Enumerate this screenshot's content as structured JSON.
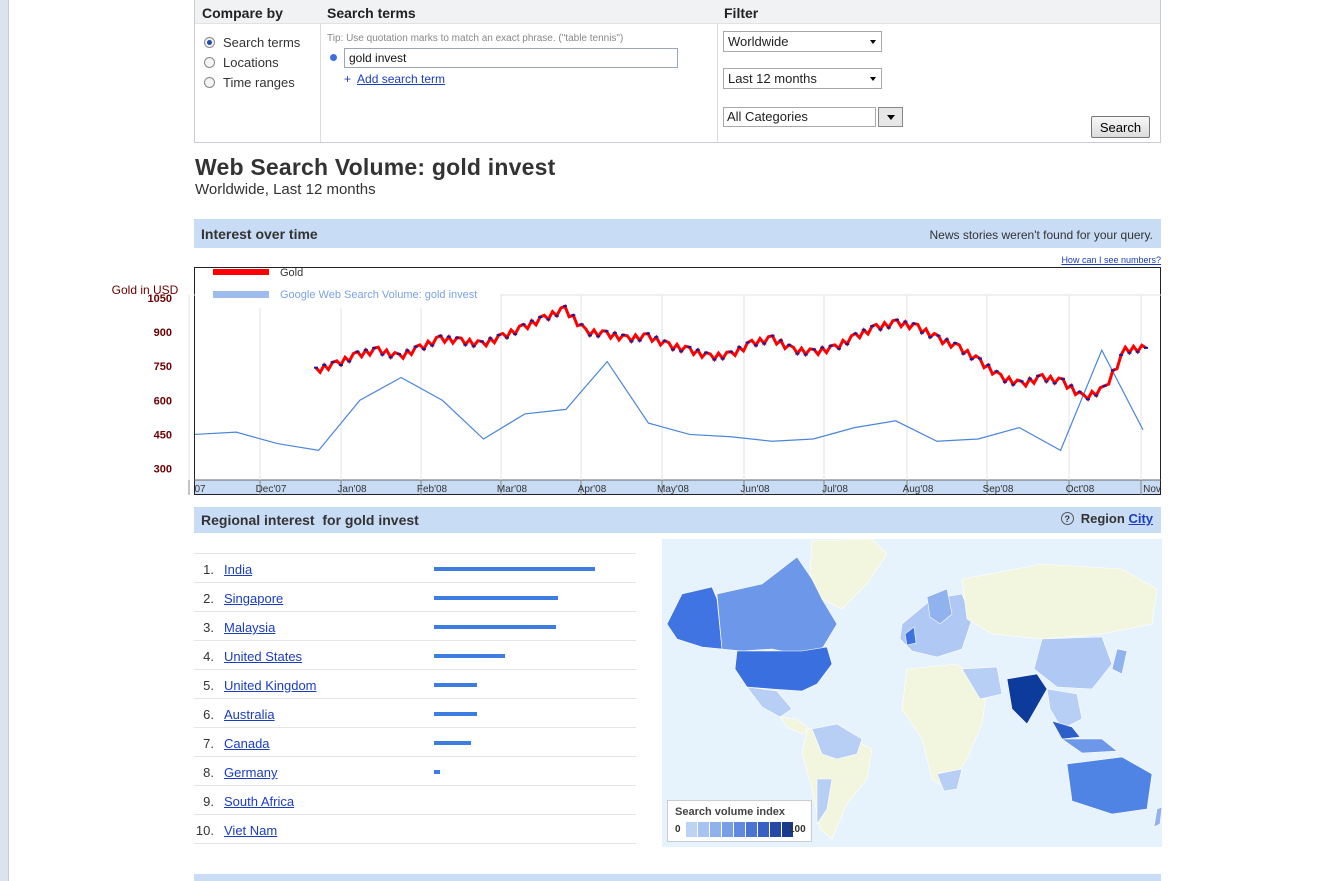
{
  "compare": {
    "header": "Compare by",
    "options": [
      {
        "label": "Search terms",
        "selected": true
      },
      {
        "label": "Locations",
        "selected": false
      },
      {
        "label": "Time ranges",
        "selected": false
      }
    ]
  },
  "terms": {
    "header": "Search terms",
    "tip": "Tip: Use quotation marks to match an exact phrase. (\"table tennis\")",
    "value": "gold invest",
    "add_label": "Add search term",
    "add_symbol": "+"
  },
  "filter": {
    "header": "Filter",
    "region": "Worldwide",
    "time": "Last 12 months",
    "category": "All Categories",
    "search_label": "Search"
  },
  "title": "Web Search Volume: gold invest",
  "subtitle": "Worldwide, Last 12 months",
  "interest": {
    "header": "Interest over time",
    "news": "News stories weren't found for your query.",
    "how": "How can I see numbers?"
  },
  "chart_data": {
    "type": "line",
    "ylabel": "Gold in USD",
    "y_ticks": [
      1050,
      900,
      750,
      600,
      450,
      300
    ],
    "x_ticks": [
      "07",
      "Dec'07",
      "Jan'08",
      "Feb'08",
      "Mar'08",
      "Apr'08",
      "May'08",
      "Jun'08",
      "Jul'08",
      "Aug'08",
      "Sep'08",
      "Oct'08",
      "Nov"
    ],
    "legend": [
      "Gold",
      "Google Web Search Volume: gold invest"
    ],
    "colors": {
      "gold": "#ff0000",
      "volume": "#4a86d8"
    },
    "series": [
      {
        "name": "Gold",
        "x": [
          "Jan'08",
          "Jan'08",
          "Jan'08",
          "Jan'08",
          "Jan'08",
          "Feb'08",
          "Feb'08",
          "Feb'08",
          "Feb'08",
          "Mar'08",
          "Mar'08",
          "Mar'08",
          "Mar'08",
          "Apr'08",
          "Apr'08",
          "Apr'08",
          "Apr'08",
          "May'08",
          "May'08",
          "May'08",
          "May'08",
          "Jun'08",
          "Jun'08",
          "Jun'08",
          "Jun'08",
          "Jul'08",
          "Jul'08",
          "Jul'08",
          "Jul'08",
          "Aug'08",
          "Aug'08",
          "Aug'08",
          "Aug'08",
          "Sep'08",
          "Sep'08",
          "Sep'08",
          "Sep'08",
          "Oct'08",
          "Oct'08",
          "Oct'08",
          "Oct'08"
        ],
        "values": [
          730,
          760,
          800,
          820,
          790,
          830,
          870,
          860,
          845,
          880,
          920,
          960,
          1000,
          900,
          890,
          870,
          880,
          840,
          820,
          790,
          800,
          850,
          870,
          820,
          810,
          830,
          880,
          920,
          940,
          920,
          870,
          830,
          770,
          700,
          670,
          700,
          680,
          610,
          650,
          820,
          830
        ]
      },
      {
        "name": "Google Web Search Volume: gold invest",
        "x": [
          "07",
          "Dec'07",
          "Dec'07",
          "Jan'08",
          "Jan'08",
          "Feb'08",
          "Feb'08",
          "Mar'08",
          "Mar'08",
          "Apr'08",
          "Apr'08",
          "May'08",
          "May'08",
          "Jun'08",
          "Jun'08",
          "Jul'08",
          "Jul'08",
          "Aug'08",
          "Aug'08",
          "Sep'08",
          "Sep'08",
          "Oct'08",
          "Oct'08",
          "Nov"
        ],
        "values": [
          450,
          460,
          410,
          380,
          600,
          700,
          600,
          430,
          540,
          560,
          770,
          500,
          450,
          440,
          420,
          430,
          480,
          510,
          420,
          430,
          480,
          380,
          820,
          470
        ]
      }
    ],
    "ylim": [
      250,
      1150
    ],
    "grid": true
  },
  "regional": {
    "header": "Regional interest",
    "for_text": "for gold invest",
    "region_label": "Region",
    "city_label": "City",
    "rows": [
      {
        "rank": "1.",
        "name": "India",
        "value": 100
      },
      {
        "rank": "2.",
        "name": "Singapore",
        "value": 77
      },
      {
        "rank": "3.",
        "name": "Malaysia",
        "value": 76
      },
      {
        "rank": "4.",
        "name": "United States",
        "value": 44
      },
      {
        "rank": "5.",
        "name": "United Kingdom",
        "value": 27
      },
      {
        "rank": "6.",
        "name": "Australia",
        "value": 27
      },
      {
        "rank": "7.",
        "name": "Canada",
        "value": 23
      },
      {
        "rank": "8.",
        "name": "Germany",
        "value": 4
      },
      {
        "rank": "9.",
        "name": "South Africa",
        "value": 0
      },
      {
        "rank": "10.",
        "name": "Viet Nam",
        "value": 0
      }
    ]
  },
  "map_legend": {
    "title": "Search volume index",
    "min": "0",
    "max": "100",
    "scale_colors": [
      "#bcd3f5",
      "#a6c3f1",
      "#8fb2ec",
      "#789fe6",
      "#5f8ae0",
      "#4a73d4",
      "#3760c4",
      "#2649a8",
      "#173a8f"
    ]
  }
}
